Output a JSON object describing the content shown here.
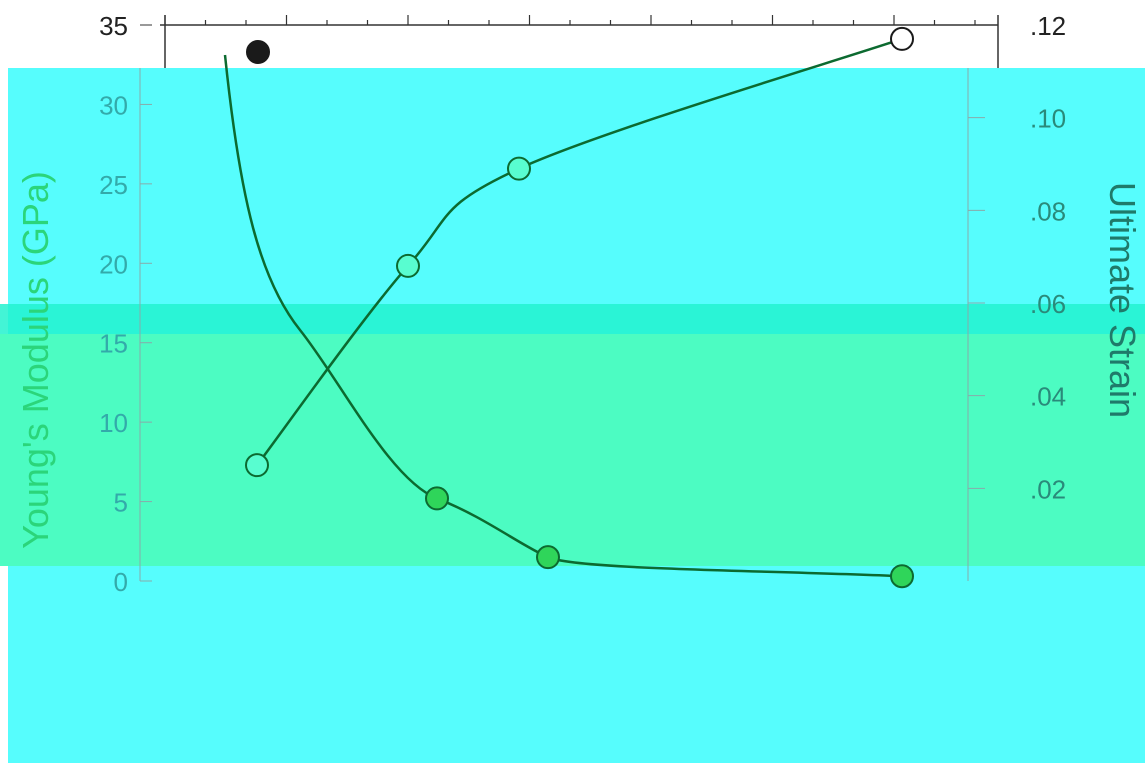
{
  "chart_data": {
    "type": "line",
    "title": "",
    "xlabel": "",
    "ylabel_left": "Young's Modulus (GPa)",
    "ylabel_right": "Ultimate Strain",
    "ylim_left": [
      0,
      35
    ],
    "ylim_right": [
      0,
      0.12
    ],
    "left_ticks": [
      "0",
      "5",
      "10",
      "15",
      "20",
      "25",
      "30",
      "35"
    ],
    "right_ticks": [
      ".02",
      ".04",
      ".06",
      ".08",
      ".10",
      ".12"
    ],
    "series": [
      {
        "axis": "left",
        "marker": "filled",
        "points": [
          {
            "x": 258,
            "y": 33.3
          },
          {
            "x": 437,
            "y": 5.2
          },
          {
            "x": 548,
            "y": 1.5
          },
          {
            "x": 902,
            "y": 0.3
          }
        ]
      },
      {
        "axis": "right",
        "marker": "open",
        "points": [
          {
            "x": 257,
            "y": 0.025
          },
          {
            "x": 408,
            "y": 0.068
          },
          {
            "x": 519,
            "y": 0.089
          },
          {
            "x": 902,
            "y": 0.117
          }
        ]
      }
    ]
  },
  "colors": {
    "cyan_band": "#56fdfd",
    "green_band": "#4cfcc2",
    "teal_band": "#22f2cf",
    "line": "#1a1a1a",
    "line_on_band": "#0a7a3a",
    "text": "#333333",
    "glitch_text": "#1a1acc"
  }
}
